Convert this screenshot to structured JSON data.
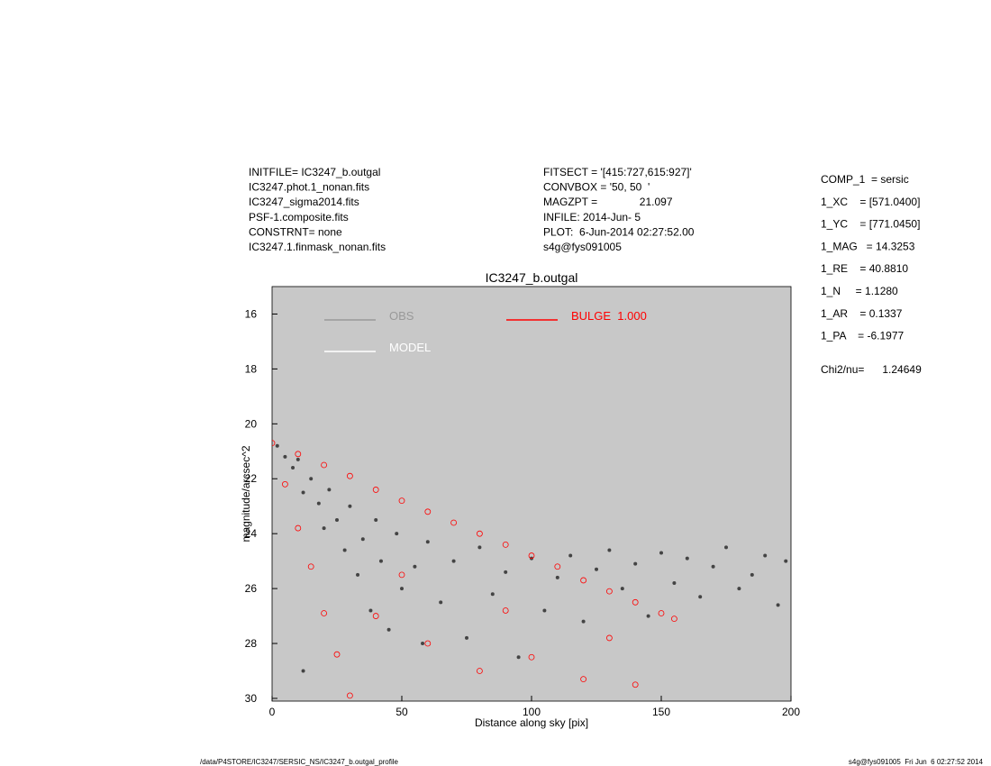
{
  "header": {
    "left": [
      "INITFILE= IC3247_b.outgal",
      "IC3247.phot.1_nonan.fits",
      "IC3247_sigma2014.fits",
      "PSF-1.composite.fits",
      "CONSTRNT= none",
      "IC3247.1.finmask_nonan.fits"
    ],
    "middle": [
      "FITSECT = '[415:727,615:927]'",
      "CONVBOX = '50, 50  '",
      "MAGZPT =              21.097",
      "INFILE: 2014-Jun- 5",
      "PLOT:  6-Jun-2014 02:27:52.00",
      "s4g@fys091005"
    ]
  },
  "params": [
    "COMP_1  = sersic",
    "1_XC    = [571.0400]",
    "1_YC    = [771.0450]",
    "1_MAG   = 14.3253",
    "1_RE    = 40.8810",
    "1_N     = 1.1280",
    "1_AR    = 0.1337",
    "1_PA    = -6.1977",
    "Chi2/nu=      1.24649"
  ],
  "footer": {
    "left": "/data/P4STORE/IC3247/SERSIC_NS/IC3247_b.outgal_profile",
    "right": "s4g@fys091005  Fri Jun  6 02:27:52 2014"
  },
  "chart_data": {
    "type": "scatter",
    "title": "IC3247_b.outgal",
    "xlabel": "Distance along sky [pix]",
    "ylabel": "magnitude/arcsec^2",
    "xlim": [
      0,
      200
    ],
    "ylim": [
      30.1,
      15
    ],
    "xticks": [
      0,
      50,
      100,
      150,
      200
    ],
    "yticks": [
      16,
      18,
      20,
      22,
      24,
      26,
      28,
      30
    ],
    "background": "#c8c8c8",
    "series": [
      {
        "name": "OBS",
        "color": "#444444",
        "legend_color": "#999999",
        "x": [
          2,
          5,
          8,
          10,
          12,
          15,
          18,
          20,
          22,
          25,
          28,
          30,
          33,
          35,
          38,
          40,
          42,
          45,
          48,
          50,
          55,
          58,
          60,
          65,
          70,
          75,
          80,
          85,
          90,
          95,
          100,
          105,
          110,
          115,
          120,
          125,
          130,
          135,
          140,
          145,
          150,
          155,
          160,
          165,
          170,
          175,
          180,
          185,
          190,
          195,
          198,
          12
        ],
        "values": [
          20.8,
          21.2,
          21.6,
          21.3,
          22.5,
          22.0,
          22.9,
          23.8,
          22.4,
          23.5,
          24.6,
          23.0,
          25.5,
          24.2,
          26.8,
          23.5,
          25.0,
          27.5,
          24.0,
          26.0,
          25.2,
          28.0,
          24.3,
          26.5,
          25.0,
          27.8,
          24.5,
          26.2,
          25.4,
          28.5,
          24.9,
          26.8,
          25.6,
          24.8,
          27.2,
          25.3,
          24.6,
          26.0,
          25.1,
          27.0,
          24.7,
          25.8,
          24.9,
          26.3,
          25.2,
          24.5,
          26.0,
          25.5,
          24.8,
          26.6,
          25.0,
          29.0
        ]
      },
      {
        "name": "MODEL",
        "color": "#ffffff",
        "legend_color": "#ffffff",
        "x": [],
        "values": []
      },
      {
        "name": "BULGE  1.000",
        "color": "#ff0000",
        "legend_color": "#ff0000",
        "x": [
          0,
          10,
          20,
          30,
          40,
          50,
          60,
          70,
          80,
          90,
          100,
          110,
          120,
          130,
          140,
          150,
          155,
          5,
          10,
          15,
          20,
          25,
          30,
          40,
          60,
          80,
          100,
          120,
          140,
          50,
          90,
          130
        ],
        "values": [
          20.7,
          21.1,
          21.5,
          21.9,
          22.4,
          22.8,
          23.2,
          23.6,
          24.0,
          24.4,
          24.8,
          25.2,
          25.7,
          26.1,
          26.5,
          26.9,
          27.1,
          22.2,
          23.8,
          25.2,
          26.9,
          28.4,
          29.9,
          27,
          28,
          29,
          28.5,
          29.3,
          29.5,
          25.5,
          26.8,
          27.8
        ]
      }
    ]
  }
}
